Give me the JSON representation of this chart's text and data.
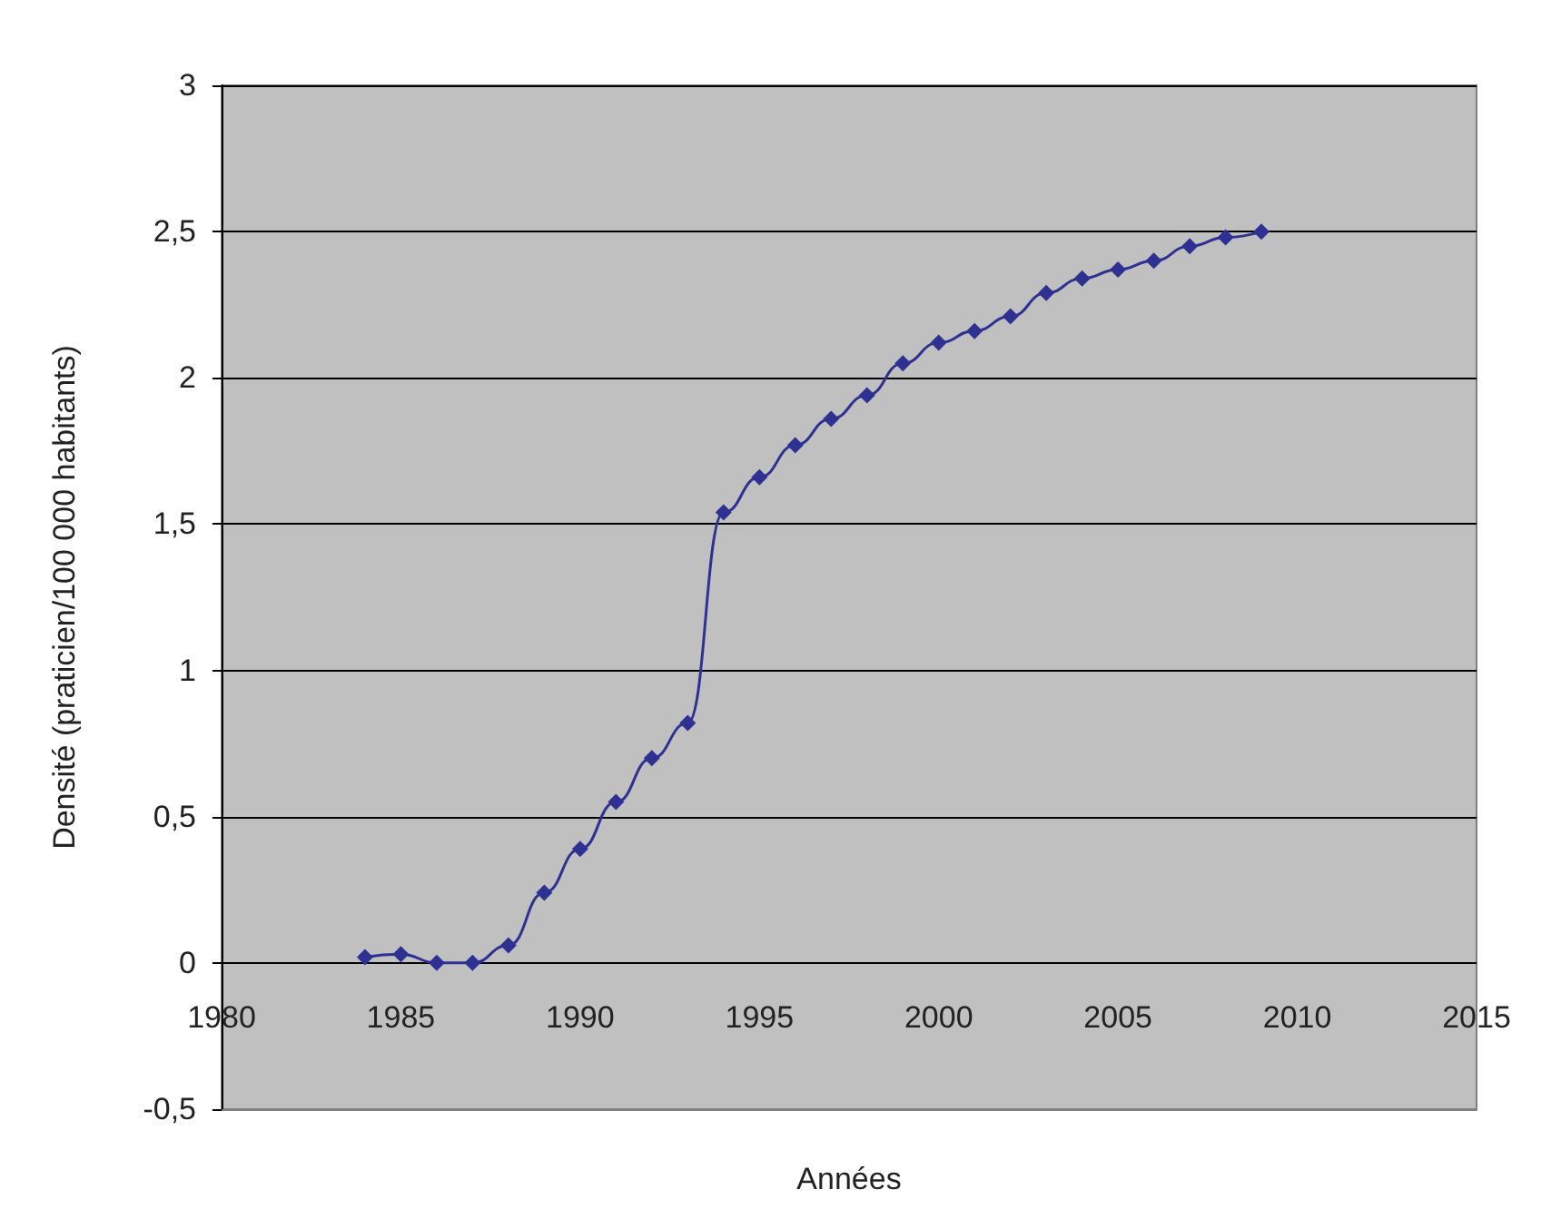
{
  "chart_data": {
    "type": "line",
    "xlabel": "Années",
    "ylabel": "Densité (praticien/100 000 habitants)",
    "x": [
      1984,
      1985,
      1986,
      1987,
      1988,
      1989,
      1990,
      1991,
      1992,
      1993,
      1994,
      1995,
      1996,
      1997,
      1998,
      1999,
      2000,
      2001,
      2002,
      2003,
      2004,
      2005,
      2006,
      2007,
      2008,
      2009
    ],
    "series": [
      {
        "color": "#2e3192",
        "values": [
          0.02,
          0.03,
          0.0,
          0.0,
          0.06,
          0.24,
          0.39,
          0.55,
          0.7,
          0.82,
          1.54,
          1.66,
          1.77,
          1.86,
          1.94,
          2.05,
          2.12,
          2.16,
          2.21,
          2.29,
          2.34,
          2.37,
          2.4,
          2.45,
          2.48,
          2.5
        ]
      }
    ],
    "xlim": [
      1980,
      2015
    ],
    "xticks": [
      1980,
      1985,
      1990,
      1995,
      2000,
      2005,
      2010,
      2015
    ],
    "ylim": [
      -0.5,
      3
    ],
    "yticks": [
      {
        "value": -0.5,
        "label": "-0,5"
      },
      0,
      {
        "value": 0.5,
        "label": "0,5"
      },
      1,
      {
        "value": 1.5,
        "label": "1,5"
      },
      2,
      {
        "value": 2.5,
        "label": "2,5"
      },
      3
    ],
    "grid": "y",
    "legend": false,
    "marker": "diamond",
    "line_style": "solid"
  }
}
